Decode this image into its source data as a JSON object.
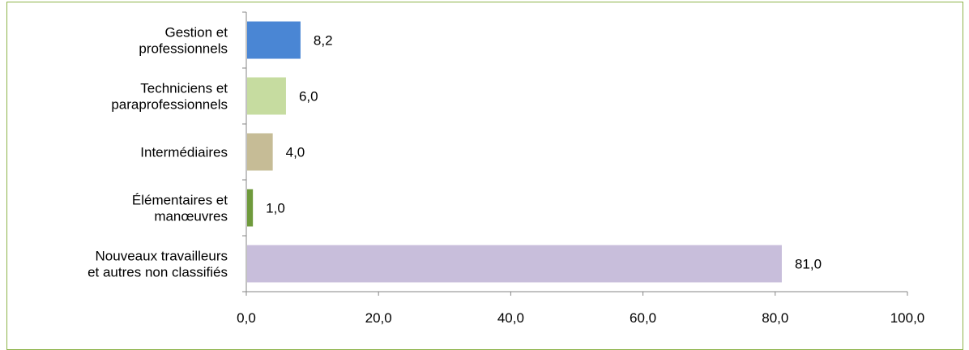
{
  "chart_data": {
    "type": "bar",
    "orientation": "horizontal",
    "categories": [
      [
        "Gestion et",
        "professionnels"
      ],
      [
        "Techniciens et",
        "paraprofessionnels"
      ],
      [
        "Intermédiaires"
      ],
      [
        "Élémentaires et",
        "manœuvres"
      ],
      [
        "Nouveaux travailleurs",
        "et autres non classifiés"
      ]
    ],
    "values": [
      8.2,
      6.0,
      4.0,
      1.0,
      81.0
    ],
    "value_labels": [
      "8,2",
      "6,0",
      "4,0",
      "1,0",
      "81,0"
    ],
    "bar_colors": [
      "#4a86d4",
      "#c6dca0",
      "#c6bc96",
      "#6f9a3c",
      "#c8bedb"
    ],
    "xlim": [
      0,
      100
    ],
    "x_ticks": [
      0,
      20,
      40,
      60,
      80,
      100
    ],
    "x_tick_labels": [
      "0,0",
      "20,0",
      "40,0",
      "60,0",
      "80,0",
      "100,0"
    ],
    "title": "",
    "xlabel": "",
    "ylabel": "",
    "grid": false,
    "legend": "none",
    "frame_color": "#8db34a"
  }
}
